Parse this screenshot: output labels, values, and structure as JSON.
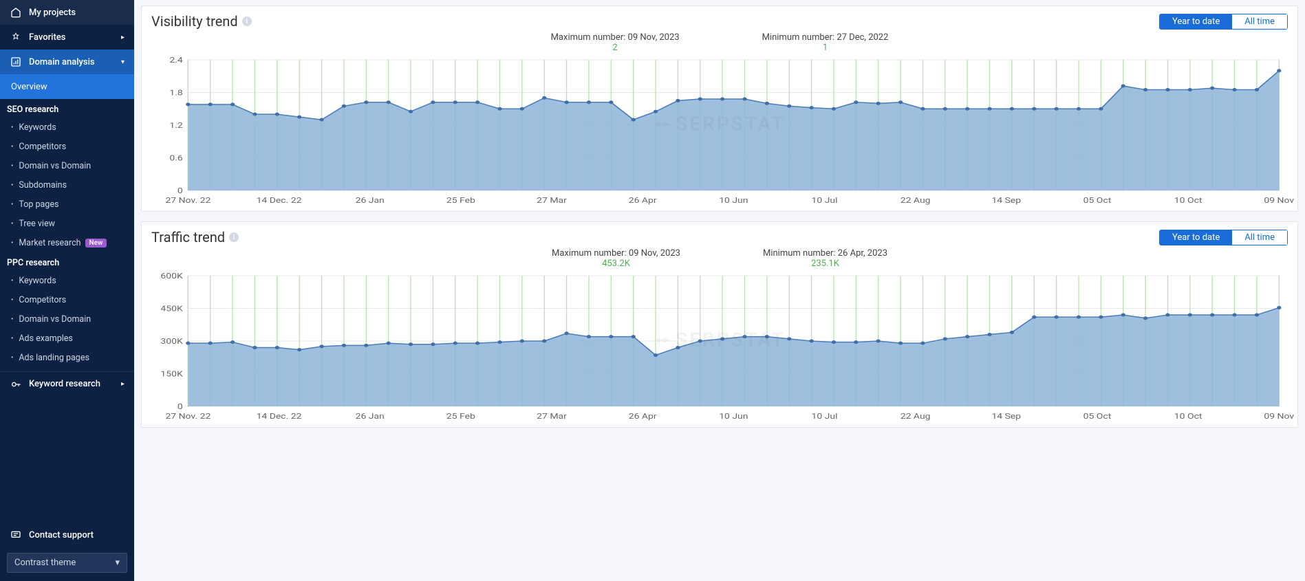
{
  "sidebar": {
    "myProjects": "My projects",
    "favorites": "Favorites",
    "domainAnalysis": "Domain analysis",
    "overview": "Overview",
    "seoHeading": "SEO research",
    "seoItems": [
      "Keywords",
      "Competitors",
      "Domain vs Domain",
      "Subdomains",
      "Top pages",
      "Tree view",
      "Market research"
    ],
    "newBadge": "New",
    "ppcHeading": "PPC research",
    "ppcItems": [
      "Keywords",
      "Competitors",
      "Domain vs Domain",
      "Ads examples",
      "Ads landing pages"
    ],
    "keywordResearch": "Keyword research",
    "contactSupport": "Contact support",
    "themeLabel": "Contrast theme"
  },
  "toggle": {
    "yearToDate": "Year to date",
    "allTime": "All time"
  },
  "watermark": "SERPSTAT",
  "visibility": {
    "title": "Visibility trend",
    "maxLabel": "Maximum number: 09 Nov, 2023",
    "maxValue": "2",
    "minLabel": "Minimum number: 27 Dec, 2022",
    "minValue": "1",
    "yTicks": [
      0,
      0.6,
      1.2,
      1.8,
      2.4
    ],
    "ylim": [
      0,
      2.4
    ],
    "xLabels": [
      "27 Nov. 22",
      "14 Dec. 22",
      "26 Jan",
      "25 Feb",
      "27 Mar",
      "26 Apr",
      "10 Jun",
      "10 Jul",
      "22 Aug",
      "14 Sep",
      "05 Oct",
      "10 Oct",
      "09 Nov"
    ],
    "series": [
      1.58,
      1.58,
      1.58,
      1.4,
      1.4,
      1.35,
      1.3,
      1.55,
      1.62,
      1.62,
      1.45,
      1.62,
      1.62,
      1.62,
      1.5,
      1.5,
      1.7,
      1.62,
      1.62,
      1.62,
      1.3,
      1.45,
      1.65,
      1.68,
      1.68,
      1.68,
      1.6,
      1.55,
      1.52,
      1.5,
      1.62,
      1.6,
      1.62,
      1.5,
      1.5,
      1.5,
      1.5,
      1.5,
      1.5,
      1.5,
      1.5,
      1.5,
      1.92,
      1.85,
      1.85,
      1.85,
      1.88,
      1.85,
      1.85,
      2.2
    ],
    "colors": {
      "area": "#8db5d8",
      "line": "#4a7db8",
      "dot": "#3f6ea8",
      "gridH": "#e8e8e8",
      "gridV": "#b8e0b0",
      "bg": "#ffffff"
    }
  },
  "traffic": {
    "title": "Traffic trend",
    "maxLabel": "Maximum number: 09 Nov, 2023",
    "maxValue": "453.2K",
    "minLabel": "Minimum number: 26 Apr, 2023",
    "minValue": "235.1K",
    "yTicks": [
      0,
      150000,
      300000,
      450000,
      600000
    ],
    "yTickLabels": [
      "0",
      "150K",
      "300K",
      "450K",
      "600K"
    ],
    "ylim": [
      0,
      600000
    ],
    "xLabels": [
      "27 Nov. 22",
      "14 Dec. 22",
      "26 Jan",
      "25 Feb",
      "27 Mar",
      "26 Apr",
      "10 Jun",
      "10 Jul",
      "22 Aug",
      "14 Sep",
      "05 Oct",
      "10 Oct",
      "09 Nov"
    ],
    "series": [
      290000,
      290000,
      295000,
      270000,
      270000,
      260000,
      275000,
      280000,
      280000,
      290000,
      285000,
      285000,
      290000,
      290000,
      295000,
      300000,
      300000,
      335000,
      320000,
      320000,
      320000,
      235000,
      270000,
      300000,
      310000,
      320000,
      320000,
      310000,
      300000,
      295000,
      295000,
      300000,
      290000,
      290000,
      310000,
      320000,
      330000,
      340000,
      410000,
      410000,
      410000,
      410000,
      420000,
      405000,
      420000,
      420000,
      420000,
      420000,
      420000,
      453000
    ],
    "colors": {
      "area": "#8db5d8",
      "line": "#4a7db8",
      "dot": "#3f6ea8",
      "gridH": "#e8e8e8",
      "gridV": "#b8e0b0",
      "bg": "#ffffff"
    }
  }
}
